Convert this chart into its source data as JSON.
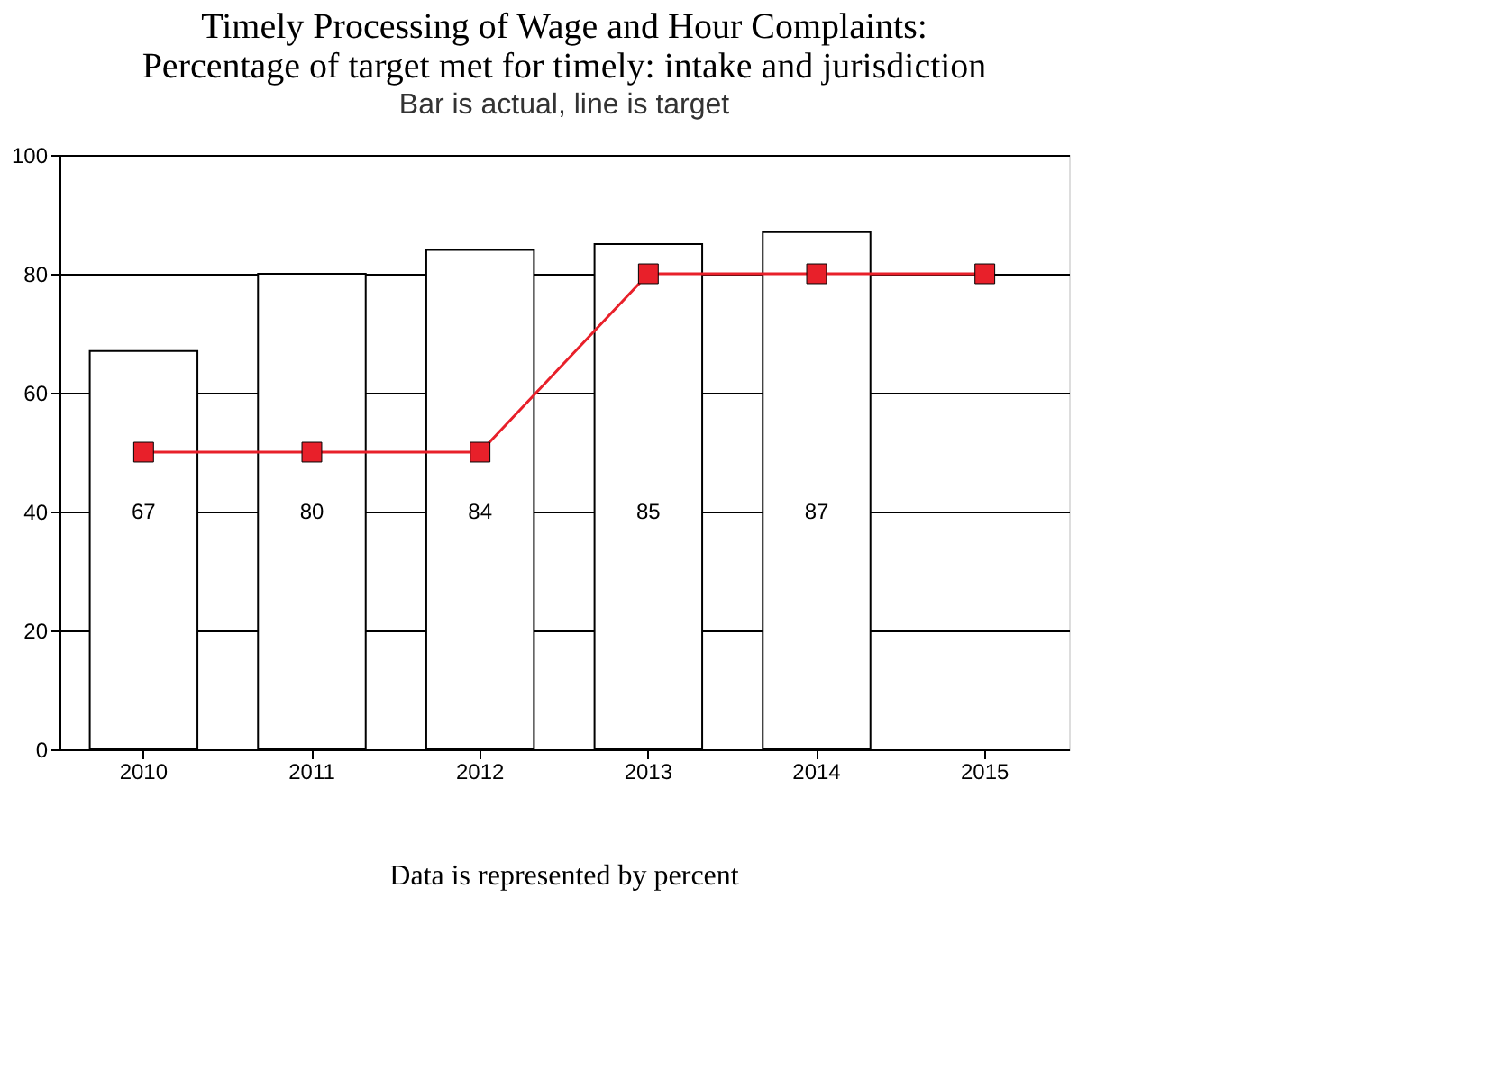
{
  "chart_data": {
    "type": "bar",
    "title": [
      "Timely Processing of Wage and Hour Complaints:",
      "Percentage of target met for timely: intake and jurisdiction"
    ],
    "subtitle": "Bar is actual, line is target",
    "categories": [
      "2010",
      "2011",
      "2012",
      "2013",
      "2014",
      "2015"
    ],
    "series": [
      {
        "color": "#ffffff",
        "values": [
          67,
          80,
          84,
          85,
          87,
          null
        ],
        "value_labels": [
          "67",
          "80",
          "84",
          "85",
          "87",
          null
        ]
      },
      {
        "type": "line",
        "color": "#e8202a",
        "values": [
          50,
          50,
          50,
          80,
          80,
          80
        ]
      }
    ],
    "marker": "square",
    "ylim": [
      0,
      100
    ],
    "yticks": [
      0,
      20,
      40,
      60,
      80,
      100
    ],
    "grid": "y",
    "annotations": [
      "Data is represented by percent"
    ]
  }
}
